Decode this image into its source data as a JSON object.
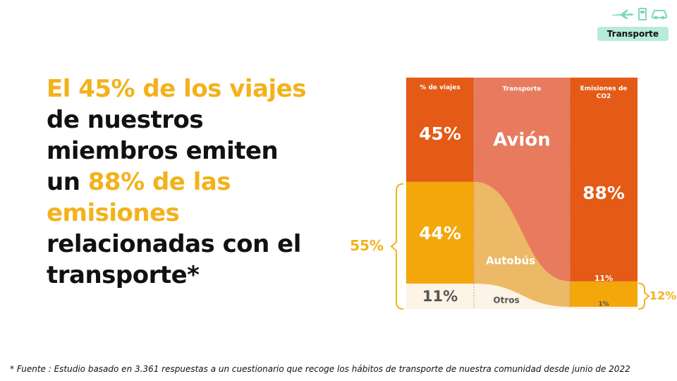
{
  "header": {
    "icons": [
      "airplane-icon",
      "fuel-pump-icon",
      "car-icon"
    ],
    "tag_label": "Transporte"
  },
  "headline": {
    "line1": "El 45% de los viajes",
    "line2": "de nuestros",
    "line3": "miembros emiten",
    "line4_prefix": "un ",
    "line4_highlight": "88% de las",
    "line5": "emisiones",
    "line6": "relacionadas con el",
    "line7": "transporte*"
  },
  "colors": {
    "highlight": "#f3b21b",
    "dark_orange": "#e45a16",
    "light_orange": "#e87a5d",
    "yellow": "#f3a70b",
    "light_yellow": "#ecb966",
    "cream": "#fdf3e6",
    "tag_bg": "#b6ecd9"
  },
  "chart_data": {
    "type": "alluvial",
    "columns": [
      "% de viajes",
      "Transporte",
      "Emisiones de CO2"
    ],
    "categories": [
      "Avión",
      "Autobús",
      "Otros"
    ],
    "trips_percent": [
      45,
      44,
      11
    ],
    "emissions_percent": [
      88,
      11,
      1
    ],
    "trip_labels": [
      "45%",
      "44%",
      "11%"
    ],
    "emission_labels": [
      "88%",
      "11%",
      "1%"
    ],
    "bracket_left_label": "55%",
    "bracket_right_label": "12%"
  },
  "footnote": "* Fuente : Estudio basado en 3.361 respuestas a un cuestionario que recoge los hábitos de transporte de nuestra comunidad desde junio de 2022"
}
